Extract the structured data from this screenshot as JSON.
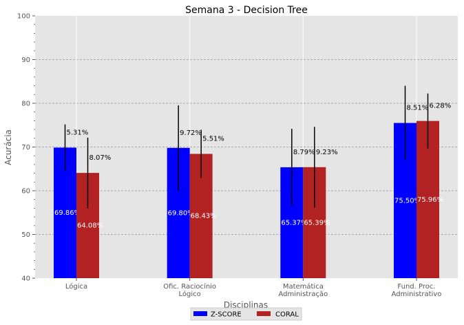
{
  "chart_data": {
    "type": "bar",
    "title": "Semana 3 - Decision Tree",
    "xlabel": "Disciplinas",
    "ylabel": "Acurácia",
    "ylim": [
      40,
      100
    ],
    "yticks": [
      40,
      50,
      60,
      70,
      80,
      90,
      100
    ],
    "categories": [
      [
        "Lógica"
      ],
      [
        "Ofic. Raciocínio",
        "Lógico"
      ],
      [
        "Matemática",
        "Administração"
      ],
      [
        "Fund. Proc.",
        "Administrativo"
      ]
    ],
    "series": [
      {
        "name": "Z-SCORE",
        "color": "#0000ff",
        "values": [
          69.86,
          69.8,
          65.37,
          75.5
        ],
        "errors": [
          5.31,
          9.72,
          8.79,
          8.51
        ],
        "value_labels": [
          "69.86%",
          "69.80%",
          "65.37%",
          "75.50%"
        ],
        "error_labels": [
          "5.31%",
          "9.72%",
          "8.79%",
          "8.51%"
        ]
      },
      {
        "name": "CORAL",
        "color": "#b22222",
        "values": [
          64.08,
          68.43,
          65.39,
          75.96
        ],
        "errors": [
          8.07,
          5.51,
          9.23,
          6.28
        ],
        "value_labels": [
          "64.08%",
          "68.43%",
          "65.39%",
          "75.96%"
        ],
        "error_labels": [
          "8.07%",
          "5.51%",
          "9.23%",
          "6.28%"
        ]
      }
    ],
    "grid": true,
    "legend": "bottom-center"
  }
}
